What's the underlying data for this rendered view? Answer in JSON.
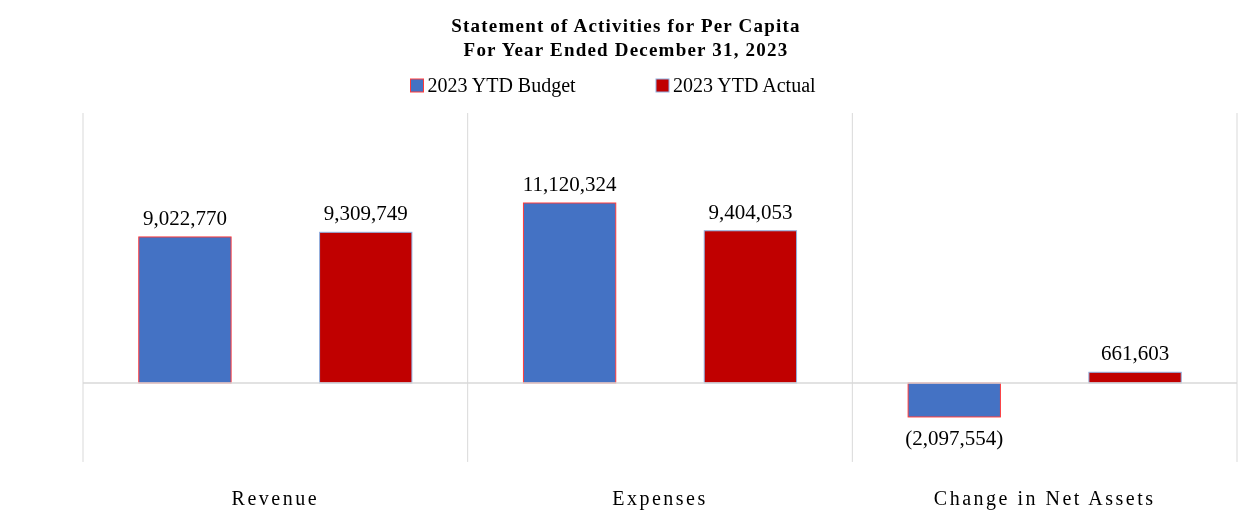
{
  "chart_data": {
    "type": "bar",
    "title": "Statement of Activities for Per Capita",
    "subtitle": "For Year Ended December 31, 2023",
    "categories": [
      "Revenue",
      "Expenses",
      "Change in Net Assets"
    ],
    "series": [
      {
        "name": "2023 YTD Budget",
        "color": "#4472c4",
        "values": [
          9022770,
          11120324,
          -2097554
        ],
        "value_labels": [
          "9,022,770",
          "11,120,324",
          "(2,097,554)"
        ]
      },
      {
        "name": "2023 YTD Actual",
        "color": "#c00000",
        "values": [
          9309749,
          9404053,
          661603
        ],
        "value_labels": [
          "9,309,749",
          "9,404,053",
          "661,603"
        ]
      }
    ],
    "grid": "x",
    "legend": "top"
  }
}
